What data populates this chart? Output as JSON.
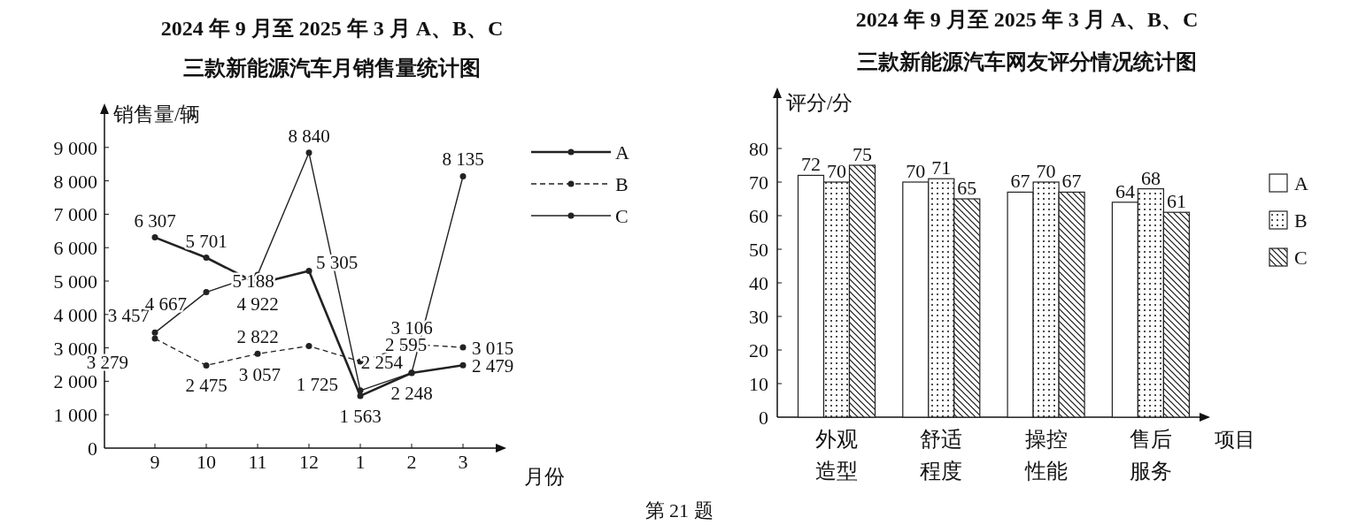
{
  "chart_data": [
    {
      "type": "line",
      "title": "2024 年 9 月至 2025 年 3 月 A、B、C",
      "subtitle": "三款新能源汽车月销售量统计图",
      "ylabel": "销售量/辆",
      "xlabel": "月份",
      "categories": [
        "9",
        "10",
        "11",
        "12",
        "1",
        "2",
        "3"
      ],
      "ylim": [
        0,
        10000
      ],
      "yticks": [
        {
          "value": 0,
          "label": "0"
        },
        {
          "value": 1000,
          "label": "1 000"
        },
        {
          "value": 2000,
          "label": "2 000"
        },
        {
          "value": 3000,
          "label": "3 000"
        },
        {
          "value": 4000,
          "label": "4 000"
        },
        {
          "value": 5000,
          "label": "5 000"
        },
        {
          "value": 6000,
          "label": "6 000"
        },
        {
          "value": 7000,
          "label": "7 000"
        },
        {
          "value": 8000,
          "label": "8 000"
        },
        {
          "value": 9000,
          "label": "9 000"
        }
      ],
      "marker": "circle",
      "legend": "top right",
      "series": [
        {
          "name": "A",
          "color": "#222222",
          "line_style": "solid",
          "values": [
            6307,
            5701,
            4922,
            5305,
            1563,
            2248,
            2479
          ],
          "value_labels": [
            "6 307",
            "5 701",
            "4 922",
            "5 305",
            "1 563",
            "2 248",
            "2 479"
          ]
        },
        {
          "name": "B",
          "color": "#222222",
          "line_style": "dashed",
          "values": [
            3279,
            2475,
            2822,
            3057,
            2595,
            3106,
            3015
          ],
          "value_labels": [
            "3 279",
            "2 475",
            "2 822",
            "3 057",
            "2 595",
            "3 106",
            "3 015"
          ]
        },
        {
          "name": "C",
          "color": "#222222",
          "line_style": "solid",
          "values": [
            3457,
            4667,
            5188,
            8840,
            1725,
            2254,
            8135
          ],
          "value_labels": [
            "3 457",
            "4 667",
            "5 188",
            "8 840",
            "1 725",
            "2 254",
            "8 135"
          ]
        }
      ],
      "annotations": [
        "第 21 题"
      ]
    },
    {
      "type": "bar",
      "title": "2024 年 9 月至 2025 年 3 月 A、B、C",
      "subtitle": "三款新能源汽车网友评分情况统计图",
      "ylabel": "评分/分",
      "xlabel": "项目",
      "categories": [
        "外观造型",
        "舒适程度",
        "操控性能",
        "售后服务"
      ],
      "ylim": [
        0,
        95
      ],
      "yticks": [
        0,
        10,
        20,
        30,
        40,
        50,
        60,
        70,
        80
      ],
      "legend": "right",
      "data_labels": true,
      "series": [
        {
          "name": "A",
          "color": "#222222",
          "values": [
            72,
            70,
            67,
            64
          ]
        },
        {
          "name": "B",
          "color": "#222222",
          "values": [
            70,
            71,
            70,
            68
          ]
        },
        {
          "name": "C",
          "color": "#222222",
          "values": [
            75,
            65,
            67,
            61
          ]
        }
      ]
    }
  ]
}
